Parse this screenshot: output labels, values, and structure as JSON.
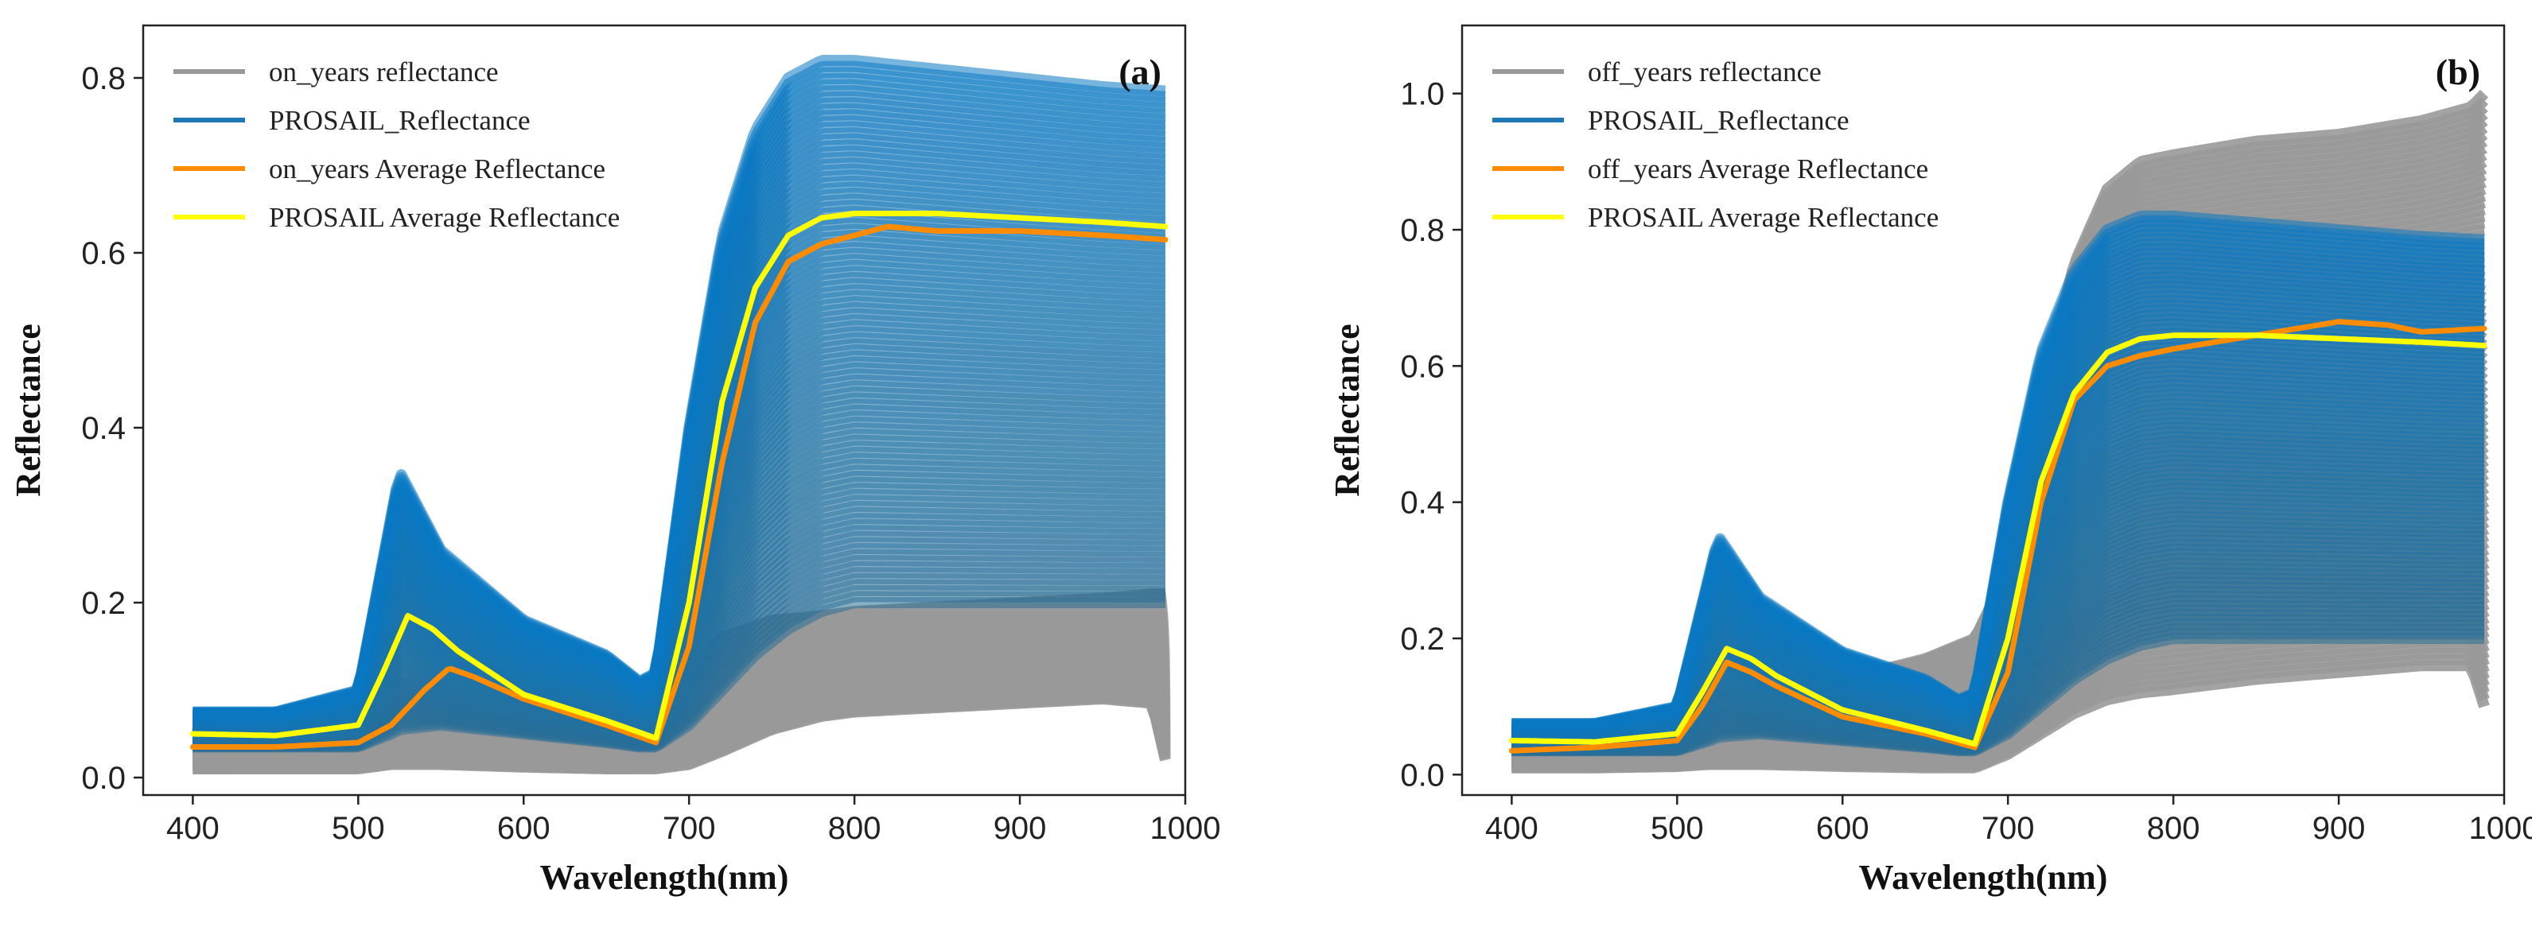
{
  "chart_data": [
    {
      "type": "line",
      "panel_label": "(a)",
      "xlabel": "Wavelength(nm)",
      "ylabel": "Reflectance",
      "xlim": [
        370,
        1000
      ],
      "ylim": [
        -0.02,
        0.86
      ],
      "xticks": [
        400,
        500,
        600,
        700,
        800,
        900,
        1000
      ],
      "yticks": [
        0.0,
        0.2,
        0.4,
        0.6,
        0.8
      ],
      "ytick_labels": [
        "0.0",
        "0.2",
        "0.4",
        "0.6",
        "0.8"
      ],
      "legend_position": "top-left",
      "grid": false,
      "legend": [
        {
          "label": "on_years reflectance",
          "color": "#999999"
        },
        {
          "label": "PROSAIL_Reflectance",
          "color": "#1f77b4"
        },
        {
          "label": "on_years Average Reflectance",
          "color": "#ff8c00"
        },
        {
          "label": "PROSAIL Average Reflectance",
          "color": "#ffff00"
        }
      ],
      "bands": [
        {
          "name": "on_years reflectance",
          "color": "#999999",
          "x": [
            400,
            450,
            500,
            520,
            550,
            600,
            650,
            680,
            700,
            720,
            750,
            780,
            800,
            850,
            900,
            950,
            980,
            988
          ],
          "lower": [
            0.01,
            0.01,
            0.01,
            0.015,
            0.015,
            0.012,
            0.01,
            0.01,
            0.015,
            0.03,
            0.055,
            0.07,
            0.075,
            0.08,
            0.085,
            0.09,
            0.085,
            0.02
          ],
          "upper": [
            0.05,
            0.06,
            0.08,
            0.11,
            0.1,
            0.08,
            0.07,
            0.09,
            0.13,
            0.16,
            0.18,
            0.185,
            0.19,
            0.195,
            0.2,
            0.205,
            0.21,
            0.21
          ]
        },
        {
          "name": "PROSAIL_Reflectance",
          "color": "#1f77b4",
          "x": [
            400,
            450,
            500,
            520,
            525,
            550,
            600,
            650,
            670,
            680,
            700,
            720,
            740,
            760,
            780,
            800,
            850,
            900,
            950,
            988
          ],
          "lower": [
            0.035,
            0.035,
            0.035,
            0.05,
            0.055,
            0.06,
            0.05,
            0.04,
            0.035,
            0.035,
            0.06,
            0.1,
            0.14,
            0.17,
            0.19,
            0.2,
            0.2,
            0.2,
            0.2,
            0.2
          ],
          "upper": [
            0.075,
            0.075,
            0.1,
            0.3,
            0.35,
            0.26,
            0.18,
            0.14,
            0.11,
            0.12,
            0.4,
            0.62,
            0.74,
            0.8,
            0.82,
            0.82,
            0.81,
            0.8,
            0.79,
            0.785
          ]
        }
      ],
      "series": [
        {
          "name": "on_years Average Reflectance",
          "color": "#ff8c00",
          "x": [
            400,
            450,
            500,
            520,
            540,
            555,
            570,
            600,
            650,
            680,
            700,
            720,
            740,
            760,
            780,
            800,
            820,
            850,
            900,
            950,
            988
          ],
          "y": [
            0.035,
            0.035,
            0.04,
            0.06,
            0.1,
            0.125,
            0.115,
            0.09,
            0.06,
            0.04,
            0.15,
            0.36,
            0.52,
            0.59,
            0.61,
            0.62,
            0.63,
            0.625,
            0.625,
            0.62,
            0.615
          ]
        },
        {
          "name": "PROSAIL Average Reflectance",
          "color": "#ffff00",
          "x": [
            400,
            450,
            500,
            515,
            530,
            545,
            560,
            600,
            650,
            680,
            700,
            720,
            740,
            760,
            780,
            800,
            850,
            900,
            950,
            988
          ],
          "y": [
            0.05,
            0.048,
            0.06,
            0.12,
            0.185,
            0.17,
            0.145,
            0.095,
            0.065,
            0.045,
            0.2,
            0.43,
            0.56,
            0.62,
            0.64,
            0.645,
            0.645,
            0.64,
            0.635,
            0.63
          ]
        }
      ]
    },
    {
      "type": "line",
      "panel_label": "(b)",
      "xlabel": "Wavelength(nm)",
      "ylabel": "Reflectance",
      "xlim": [
        370,
        1000
      ],
      "ylim": [
        -0.03,
        1.1
      ],
      "xticks": [
        400,
        500,
        600,
        700,
        800,
        900,
        1000
      ],
      "yticks": [
        0.0,
        0.2,
        0.4,
        0.6,
        0.8,
        1.0
      ],
      "ytick_labels": [
        "0.0",
        "0.2",
        "0.4",
        "0.6",
        "0.8",
        "1.0"
      ],
      "legend_position": "top-left",
      "grid": false,
      "legend": [
        {
          "label": "off_years reflectance",
          "color": "#999999"
        },
        {
          "label": "PROSAIL_Reflectance",
          "color": "#1f77b4"
        },
        {
          "label": "off_years Average Reflectance",
          "color": "#ff8c00"
        },
        {
          "label": "PROSAIL Average Reflectance",
          "color": "#ffff00"
        }
      ],
      "bands": [
        {
          "name": "off_years reflectance",
          "color": "#999999",
          "x": [
            400,
            450,
            500,
            520,
            550,
            600,
            650,
            680,
            700,
            720,
            740,
            760,
            780,
            800,
            850,
            900,
            950,
            980,
            988
          ],
          "lower": [
            0.01,
            0.01,
            0.012,
            0.015,
            0.015,
            0.012,
            0.01,
            0.01,
            0.03,
            0.06,
            0.09,
            0.11,
            0.12,
            0.125,
            0.14,
            0.15,
            0.16,
            0.16,
            0.1
          ],
          "upper": [
            0.05,
            0.06,
            0.08,
            0.11,
            0.12,
            0.14,
            0.17,
            0.2,
            0.3,
            0.55,
            0.75,
            0.86,
            0.9,
            0.91,
            0.93,
            0.94,
            0.96,
            0.98,
            1.0
          ]
        },
        {
          "name": "PROSAIL_Reflectance",
          "color": "#1f77b4",
          "x": [
            400,
            450,
            500,
            520,
            525,
            550,
            600,
            650,
            670,
            680,
            700,
            720,
            740,
            760,
            780,
            800,
            850,
            900,
            950,
            988
          ],
          "lower": [
            0.035,
            0.035,
            0.035,
            0.05,
            0.055,
            0.06,
            0.05,
            0.04,
            0.035,
            0.035,
            0.06,
            0.1,
            0.14,
            0.17,
            0.19,
            0.2,
            0.2,
            0.2,
            0.2,
            0.2
          ],
          "upper": [
            0.075,
            0.075,
            0.1,
            0.3,
            0.35,
            0.26,
            0.18,
            0.14,
            0.11,
            0.12,
            0.4,
            0.62,
            0.74,
            0.8,
            0.82,
            0.82,
            0.81,
            0.8,
            0.79,
            0.785
          ]
        }
      ],
      "series": [
        {
          "name": "off_years Average Reflectance",
          "color": "#ff8c00",
          "x": [
            400,
            450,
            500,
            515,
            530,
            545,
            560,
            600,
            650,
            680,
            700,
            720,
            740,
            760,
            780,
            800,
            850,
            900,
            930,
            950,
            988
          ],
          "y": [
            0.035,
            0.04,
            0.05,
            0.1,
            0.165,
            0.15,
            0.13,
            0.085,
            0.06,
            0.04,
            0.15,
            0.4,
            0.55,
            0.6,
            0.615,
            0.625,
            0.645,
            0.665,
            0.66,
            0.65,
            0.655
          ]
        },
        {
          "name": "PROSAIL Average Reflectance",
          "color": "#ffff00",
          "x": [
            400,
            450,
            500,
            515,
            530,
            545,
            560,
            600,
            650,
            680,
            700,
            720,
            740,
            760,
            780,
            800,
            850,
            900,
            950,
            988
          ],
          "y": [
            0.05,
            0.048,
            0.06,
            0.12,
            0.185,
            0.17,
            0.145,
            0.095,
            0.065,
            0.045,
            0.2,
            0.43,
            0.56,
            0.62,
            0.64,
            0.645,
            0.645,
            0.64,
            0.635,
            0.63
          ]
        }
      ]
    }
  ]
}
